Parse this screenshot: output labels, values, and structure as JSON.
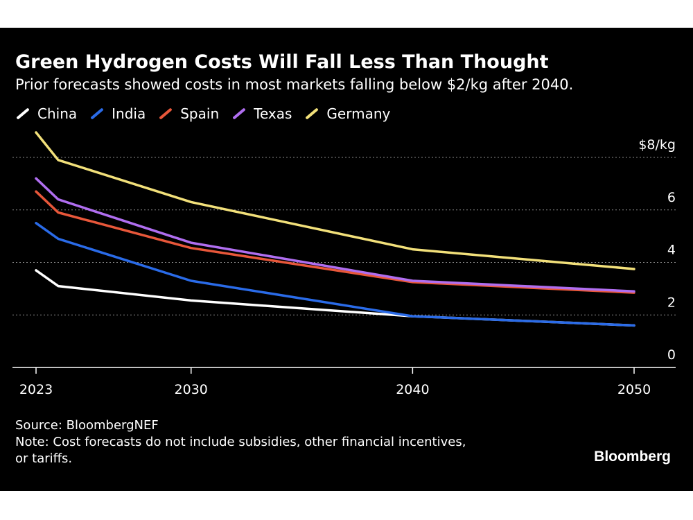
{
  "brand": "Bloomberg",
  "source": "Source: BloombergNEF",
  "note": "Note: Cost forecasts do not include subsidies, other financial incentives, or tariffs.",
  "note_line1": "Note: Cost forecasts do not include subsidies, other financial incentives,",
  "note_line2": "or tariffs.",
  "colors": {
    "background": "#000000",
    "grid": "#8a8a8a",
    "axis": "#ffffff",
    "text": "#ffffff"
  },
  "chart_data": {
    "type": "line",
    "title": "Green Hydrogen Costs Will Fall Less Than Thought",
    "subtitle": "Prior forecasts showed costs in most markets falling below $2/kg after 2040.",
    "xlabel": "",
    "ylabel": "$8/kg",
    "x": [
      2023,
      2024,
      2030,
      2040,
      2050
    ],
    "xticks": [
      2023,
      2030,
      2040,
      2050
    ],
    "xtick_labels": [
      "2023",
      "2030",
      "2040",
      "2050"
    ],
    "xlim": [
      2023,
      2052
    ],
    "ylim": [
      0,
      8
    ],
    "yticks": [
      0,
      2,
      4,
      6,
      8
    ],
    "ytick_labels": [
      "0",
      "2",
      "4",
      "6",
      "$8/kg"
    ],
    "grid": true,
    "legend_position": "top-left",
    "series": [
      {
        "name": "China",
        "color": "#ffffff",
        "values": [
          3.7,
          3.1,
          2.55,
          1.95,
          1.6
        ]
      },
      {
        "name": "India",
        "color": "#2a6be8",
        "values": [
          5.5,
          4.9,
          3.3,
          1.95,
          1.6
        ]
      },
      {
        "name": "Spain",
        "color": "#e8573a",
        "values": [
          6.7,
          5.9,
          4.55,
          3.25,
          2.85
        ]
      },
      {
        "name": "Texas",
        "color": "#b06ef0",
        "values": [
          7.2,
          6.4,
          4.75,
          3.3,
          2.9
        ]
      },
      {
        "name": "Germany",
        "color": "#f2e07a",
        "values": [
          8.95,
          7.9,
          6.3,
          4.5,
          3.75
        ]
      }
    ]
  }
}
